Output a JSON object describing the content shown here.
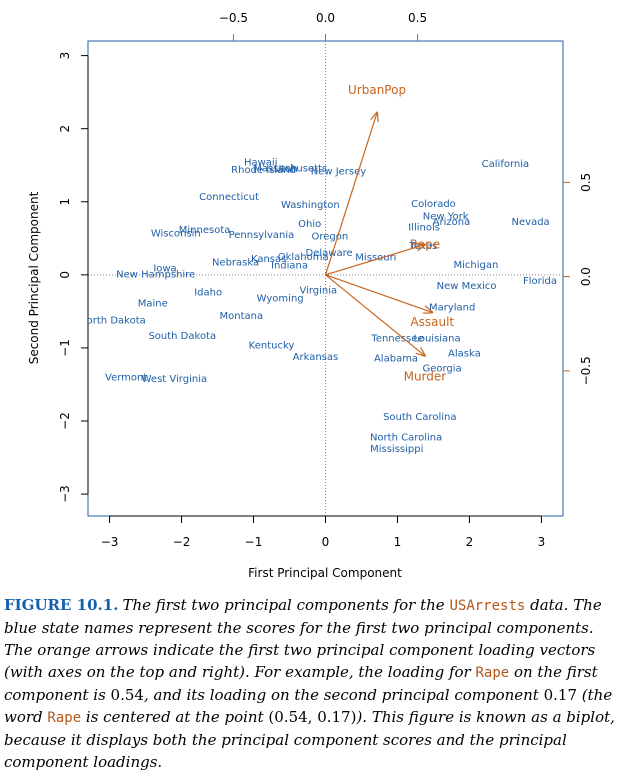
{
  "chart_data": {
    "type": "scatter",
    "subtype": "biplot",
    "xlabel": "First Principal Component",
    "ylabel": "Second Principal Component",
    "xlim": [
      -3.3,
      3.3
    ],
    "ylim": [
      -3.3,
      3.2
    ],
    "xticks": [
      -3,
      -2,
      -1,
      0,
      1,
      2,
      3
    ],
    "yticks": [
      -3,
      -2,
      -1,
      0,
      1,
      2,
      3
    ],
    "top_axis": {
      "label_ticks": [
        {
          "value": -0.5,
          "label": "−0.5"
        },
        {
          "value": 0.0,
          "label": "0.0"
        },
        {
          "value": 0.5,
          "label": "0.5"
        }
      ],
      "lim": [
        -1.29,
        1.29
      ]
    },
    "right_axis": {
      "label_ticks": [
        {
          "value": 0.5,
          "label": "0.5"
        },
        {
          "value": 0.0,
          "label": "0.0"
        },
        {
          "value": -0.5,
          "label": "−0.5"
        }
      ],
      "lim": [
        -1.27,
        1.25
      ]
    },
    "score_color": "#1f5fa8",
    "loading_color": "#c8641e",
    "points": [
      {
        "label": "Alabama",
        "x": 0.98,
        "y": -1.13
      },
      {
        "label": "Alaska",
        "x": 1.93,
        "y": -1.06
      },
      {
        "label": "Arizona",
        "x": 1.75,
        "y": 0.74
      },
      {
        "label": "Arkansas",
        "x": -0.14,
        "y": -1.11
      },
      {
        "label": "California",
        "x": 2.5,
        "y": 1.53
      },
      {
        "label": "Colorado",
        "x": 1.5,
        "y": 0.98
      },
      {
        "label": "Connecticut",
        "x": -1.34,
        "y": 1.08
      },
      {
        "label": "Delaware",
        "x": 0.05,
        "y": 0.31
      },
      {
        "label": "Florida",
        "x": 2.98,
        "y": -0.07
      },
      {
        "label": "Georgia",
        "x": 1.62,
        "y": -1.27
      },
      {
        "label": "Hawaii",
        "x": -0.9,
        "y": 1.55
      },
      {
        "label": "Idaho",
        "x": -1.63,
        "y": -0.23
      },
      {
        "label": "Illinois",
        "x": 1.37,
        "y": 0.66
      },
      {
        "label": "Indiana",
        "x": -0.5,
        "y": 0.14
      },
      {
        "label": "Iowa",
        "x": -2.23,
        "y": 0.1
      },
      {
        "label": "Kansas",
        "x": -0.79,
        "y": 0.23
      },
      {
        "label": "Kentucky",
        "x": -0.75,
        "y": -0.95
      },
      {
        "label": "Louisiana",
        "x": 1.55,
        "y": -0.86
      },
      {
        "label": "Maine",
        "x": -2.4,
        "y": -0.38
      },
      {
        "label": "Maryland",
        "x": 1.76,
        "y": -0.43
      },
      {
        "label": "Massachusetts",
        "x": -0.49,
        "y": 1.47
      },
      {
        "label": "Michigan",
        "x": 2.09,
        "y": 0.15
      },
      {
        "label": "Minnesota",
        "x": -1.68,
        "y": 0.63
      },
      {
        "label": "Mississippi",
        "x": 0.99,
        "y": -2.37
      },
      {
        "label": "Missouri",
        "x": 0.7,
        "y": 0.25
      },
      {
        "label": "Montana",
        "x": -1.17,
        "y": -0.55
      },
      {
        "label": "Nebraska",
        "x": -1.25,
        "y": 0.18
      },
      {
        "label": "Nevada",
        "x": 2.85,
        "y": 0.74
      },
      {
        "label": "New Hampshire",
        "x": -2.36,
        "y": 0.02
      },
      {
        "label": "New Jersey",
        "x": 0.18,
        "y": 1.43
      },
      {
        "label": "New Mexico",
        "x": 1.96,
        "y": -0.14
      },
      {
        "label": "New York",
        "x": 1.67,
        "y": 0.81
      },
      {
        "label": "North Carolina",
        "x": 1.12,
        "y": -2.21
      },
      {
        "label": "North Dakota",
        "x": -2.96,
        "y": -0.61
      },
      {
        "label": "Ohio",
        "x": -0.22,
        "y": 0.71
      },
      {
        "label": "Oklahoma",
        "x": -0.31,
        "y": 0.26
      },
      {
        "label": "Oregon",
        "x": 0.06,
        "y": 0.54
      },
      {
        "label": "Pennsylvania",
        "x": -0.89,
        "y": 0.56
      },
      {
        "label": "Rhode Island",
        "x": -0.86,
        "y": 1.45
      },
      {
        "label": "South Carolina",
        "x": 1.31,
        "y": -1.93
      },
      {
        "label": "South Dakota",
        "x": -1.99,
        "y": -0.82
      },
      {
        "label": "Tennessee",
        "x": 1.0,
        "y": -0.86
      },
      {
        "label": "Texas",
        "x": 1.36,
        "y": 0.41
      },
      {
        "label": "Utah",
        "x": -0.55,
        "y": 1.46
      },
      {
        "label": "Vermont",
        "x": -2.77,
        "y": -1.39
      },
      {
        "label": "Virginia",
        "x": -0.1,
        "y": -0.2
      },
      {
        "label": "Washington",
        "x": -0.21,
        "y": 0.97
      },
      {
        "label": "West Virginia",
        "x": -2.1,
        "y": -1.41
      },
      {
        "label": "Wisconsin",
        "x": -2.08,
        "y": 0.58
      },
      {
        "label": "Wyoming",
        "x": -0.63,
        "y": -0.31
      }
    ],
    "loadings": [
      {
        "label": "UrbanPop",
        "pc1": 0.28,
        "pc2": 0.87,
        "label_pc1": 0.28,
        "label_pc2": 0.99
      },
      {
        "label": "Rape",
        "pc1": 0.54,
        "pc2": 0.17,
        "label_pc1": 0.54,
        "label_pc2": 0.17
      },
      {
        "label": "Assault",
        "pc1": 0.58,
        "pc2": -0.19,
        "label_pc1": 0.58,
        "label_pc2": -0.24
      },
      {
        "label": "Murder",
        "pc1": 0.54,
        "pc2": -0.42,
        "label_pc1": 0.54,
        "label_pc2": -0.53
      }
    ]
  },
  "caption": {
    "label": "FIGURE 10.1.",
    "segments": [
      {
        "t": "The first two principal components for the ",
        "s": "em"
      },
      {
        "t": "USArrests",
        "s": "code"
      },
      {
        "t": " data. The blue state names represent the scores for the first two principal components. The orange arrows indicate the first two principal component loading vectors (with axes on the top and right). For example, the loading for ",
        "s": "em"
      },
      {
        "t": "Rape",
        "s": "code"
      },
      {
        "t": " on the first component is ",
        "s": "em"
      },
      {
        "t": "0.54",
        "s": "math"
      },
      {
        "t": ", and its loading on the second principal component ",
        "s": "em"
      },
      {
        "t": "0.17",
        "s": "math"
      },
      {
        "t": " (the word ",
        "s": "em"
      },
      {
        "t": "Rape",
        "s": "code"
      },
      {
        "t": " is centered at the point ",
        "s": "em"
      },
      {
        "t": "(0.54, 0.17)",
        "s": "math"
      },
      {
        "t": "). This figure is known as a biplot, because it displays both the principal component scores and the principal component loadings.",
        "s": "em"
      }
    ]
  }
}
